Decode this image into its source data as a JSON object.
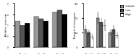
{
  "chart_data": [
    {
      "type": "bar",
      "y_label": "Relative response",
      "categories": [
        "Test 1",
        "Test 2",
        "Test 3"
      ],
      "series": [
        {
          "name": "Control",
          "color": "#999999",
          "values": [
            1.2,
            1.4,
            1.6
          ]
        },
        {
          "name": "Low",
          "color": "#555555",
          "values": [
            1.0,
            1.3,
            1.7
          ]
        },
        {
          "name": "High",
          "color": "#000000",
          "values": [
            1.1,
            1.2,
            1.5
          ]
        }
      ],
      "ylim": [
        0,
        2
      ],
      "yticks": [
        0,
        0.5,
        1,
        1.5,
        2
      ]
    },
    {
      "type": "bar",
      "y_label": "Number of responses",
      "categories": [
        "Trial 1",
        "Trial 2",
        "Trial 3"
      ],
      "series": [
        {
          "name": "Control",
          "color": "#999999",
          "values": [
            12,
            20,
            10
          ],
          "errors": [
            3,
            4,
            2
          ]
        },
        {
          "name": "Low",
          "color": "#555555",
          "values": [
            10,
            17,
            12
          ],
          "errors": [
            2,
            3,
            3
          ]
        },
        {
          "name": "High",
          "color": "#ffffff",
          "values": [
            7,
            15,
            8
          ],
          "errors": [
            2,
            4,
            2
          ]
        }
      ],
      "ylim": [
        0,
        30
      ],
      "yticks": [
        0,
        10,
        20,
        30
      ],
      "legend": "right"
    }
  ]
}
